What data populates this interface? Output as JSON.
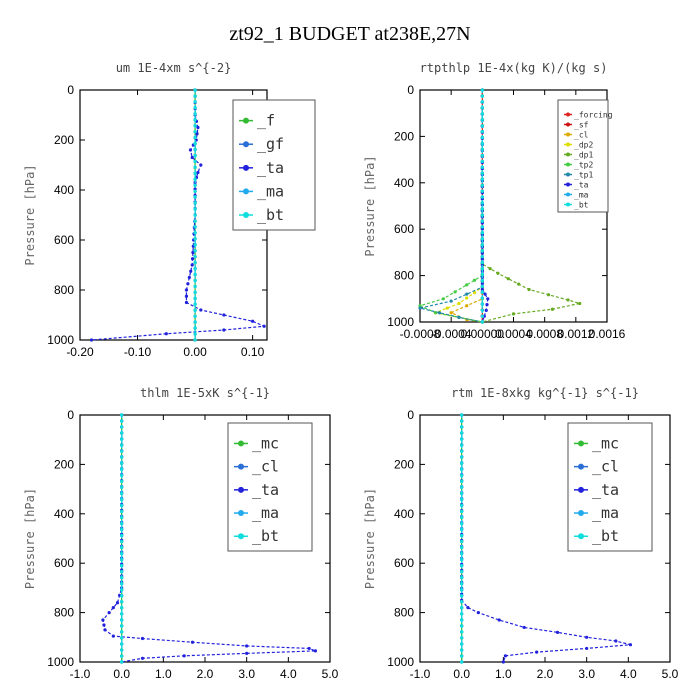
{
  "figure": {
    "title": "zt92_1  BUDGET at238E,27N"
  },
  "chart_data": [
    {
      "type": "line",
      "title": "um  1E-4xm s^{-2}",
      "xlabel": "",
      "ylabel": "Pressure [hPa]",
      "xlim": [
        -0.2,
        0.125
      ],
      "ylim": [
        1000,
        0
      ],
      "xticks": [
        -0.2,
        -0.1,
        0.0,
        0.1
      ],
      "xtick_labels": [
        "-0.20",
        "-0.10",
        "0.00",
        "0.10"
      ],
      "yticks": [
        0,
        200,
        400,
        600,
        800,
        1000
      ],
      "ytick_labels": [
        "0",
        "200",
        "400",
        "600",
        "800",
        "1000"
      ],
      "legend": "top-right",
      "series": [
        {
          "name": "_f",
          "color": "#33bb33",
          "points": [
            [
              0,
              0
            ],
            [
              0,
              1000
            ]
          ]
        },
        {
          "name": "_gf",
          "color": "#2a6fd6",
          "points": [
            [
              0,
              0
            ],
            [
              0,
              1000
            ]
          ]
        },
        {
          "name": "_ta",
          "color": "#2222dd",
          "points": [
            [
              0,
              0
            ],
            [
              0,
              100
            ],
            [
              0.005,
              150
            ],
            [
              0.002,
              200
            ],
            [
              -0.008,
              240
            ],
            [
              -0.005,
              270
            ],
            [
              0.01,
              300
            ],
            [
              0.005,
              330
            ],
            [
              0,
              370
            ],
            [
              0,
              500
            ],
            [
              -0.005,
              700
            ],
            [
              -0.01,
              750
            ],
            [
              -0.015,
              800
            ],
            [
              -0.015,
              850
            ],
            [
              0.01,
              880
            ],
            [
              0.05,
              900
            ],
            [
              0.1,
              925
            ],
            [
              0.12,
              945
            ],
            [
              0.05,
              960
            ],
            [
              -0.05,
              975
            ],
            [
              -0.18,
              1000
            ]
          ]
        },
        {
          "name": "_ma",
          "color": "#22aaee",
          "points": [
            [
              0,
              0
            ],
            [
              0,
              1000
            ]
          ]
        },
        {
          "name": "_bt",
          "color": "#11dddd",
          "points": [
            [
              0,
              0
            ],
            [
              0,
              1000
            ]
          ]
        }
      ]
    },
    {
      "type": "line",
      "title": "rtpthlp  1E-4x(kg K)/(kg s)",
      "xlabel": "",
      "ylabel": "Pressure [hPa]",
      "xlim": [
        -0.0008,
        0.0016
      ],
      "ylim": [
        1000,
        0
      ],
      "xticks": [
        -0.0008,
        -0.0004,
        0.0,
        0.0004,
        0.0008,
        0.0012,
        0.0016
      ],
      "xtick_labels": [
        "-0.0008",
        "-0.0004",
        "0.00000",
        "0.0004",
        "0.0008",
        "0.0012",
        "0.0016"
      ],
      "yticks": [
        0,
        200,
        400,
        600,
        800,
        1000
      ],
      "ytick_labels": [
        "0",
        "200",
        "400",
        "600",
        "800",
        "1000"
      ],
      "legend": "top-right",
      "series": [
        {
          "name": "_forcing",
          "color": "#dd2222",
          "points": [
            [
              0,
              0
            ],
            [
              0,
              1000
            ]
          ]
        },
        {
          "name": "_sf",
          "color": "#cc1111",
          "points": [
            [
              0,
              0
            ],
            [
              0,
              1000
            ]
          ]
        },
        {
          "name": "_cl",
          "color": "#ddaa00",
          "points": [
            [
              0,
              0
            ],
            [
              0,
              900
            ],
            [
              -0.0004,
              960
            ],
            [
              -0.0002,
              990
            ],
            [
              0,
              1000
            ]
          ]
        },
        {
          "name": "_dp2",
          "color": "#dddd00",
          "points": [
            [
              0,
              0
            ],
            [
              0,
              850
            ],
            [
              -0.0003,
              920
            ],
            [
              -0.0006,
              960
            ],
            [
              0,
              1000
            ]
          ]
        },
        {
          "name": "_dp1",
          "color": "#66aa22",
          "points": [
            [
              0,
              0
            ],
            [
              0,
              750
            ],
            [
              0.0002,
              790
            ],
            [
              0.0006,
              860
            ],
            [
              0.0011,
              905
            ],
            [
              0.00125,
              920
            ],
            [
              0.0009,
              945
            ],
            [
              0.0004,
              965
            ],
            [
              0,
              1000
            ]
          ]
        },
        {
          "name": "_tp2",
          "color": "#44cc44",
          "points": [
            [
              0,
              0
            ],
            [
              0,
              800
            ],
            [
              -0.0002,
              840
            ],
            [
              -0.0005,
              900
            ],
            [
              -0.0008,
              930
            ],
            [
              -0.0006,
              960
            ],
            [
              0,
              1000
            ]
          ]
        },
        {
          "name": "_tp1",
          "color": "#2288aa",
          "points": [
            [
              0,
              0
            ],
            [
              0,
              850
            ],
            [
              -0.0004,
              910
            ],
            [
              -0.0008,
              940
            ],
            [
              -0.0003,
              980
            ],
            [
              0,
              1000
            ]
          ]
        },
        {
          "name": "_ta",
          "color": "#2222dd",
          "points": [
            [
              0,
              0
            ],
            [
              0,
              860
            ],
            [
              7e-05,
              900
            ],
            [
              5e-05,
              950
            ],
            [
              0,
              1000
            ]
          ]
        },
        {
          "name": "_ma",
          "color": "#22aaee",
          "points": [
            [
              0,
              0
            ],
            [
              0,
              1000
            ]
          ]
        },
        {
          "name": "_bt",
          "color": "#11dddd",
          "points": [
            [
              0,
              0
            ],
            [
              0,
              1000
            ]
          ]
        }
      ]
    },
    {
      "type": "line",
      "title": "thlm  1E-5xK s^{-1}",
      "xlabel": "",
      "ylabel": "Pressure [hPa]",
      "xlim": [
        -1.0,
        5.0
      ],
      "ylim": [
        1000,
        0
      ],
      "xticks": [
        -1,
        0,
        1,
        2,
        3,
        4,
        5
      ],
      "xtick_labels": [
        "-1.0",
        "0.0",
        "1.0",
        "2.0",
        "3.0",
        "4.0",
        "5.0"
      ],
      "yticks": [
        0,
        200,
        400,
        600,
        800,
        1000
      ],
      "ytick_labels": [
        "0",
        "200",
        "400",
        "600",
        "800",
        "1000"
      ],
      "legend": "top-right",
      "series": [
        {
          "name": "_mc",
          "color": "#33bb33",
          "points": [
            [
              0,
              0
            ],
            [
              0,
              1000
            ]
          ]
        },
        {
          "name": "_cl",
          "color": "#2a6fd6",
          "points": [
            [
              0,
              0
            ],
            [
              0,
              1000
            ]
          ]
        },
        {
          "name": "_ta",
          "color": "#2222dd",
          "points": [
            [
              0,
              0
            ],
            [
              0,
              700
            ],
            [
              -0.1,
              760
            ],
            [
              -0.3,
              800
            ],
            [
              -0.45,
              830
            ],
            [
              -0.4,
              870
            ],
            [
              -0.2,
              895
            ],
            [
              0.5,
              905
            ],
            [
              1.7,
              920
            ],
            [
              3.0,
              935
            ],
            [
              4.5,
              945
            ],
            [
              4.65,
              955
            ],
            [
              3.0,
              965
            ],
            [
              1.5,
              975
            ],
            [
              0.5,
              985
            ],
            [
              0,
              1000
            ]
          ]
        },
        {
          "name": "_ma",
          "color": "#22aaee",
          "points": [
            [
              0,
              0
            ],
            [
              0,
              1000
            ]
          ]
        },
        {
          "name": "_bt",
          "color": "#11dddd",
          "points": [
            [
              0,
              0
            ],
            [
              0,
              1000
            ]
          ]
        }
      ]
    },
    {
      "type": "line",
      "title": "rtm  1E-8xkg kg^{-1} s^{-1}",
      "xlabel": "",
      "ylabel": "Pressure [hPa]",
      "xlim": [
        -1.0,
        5.0
      ],
      "ylim": [
        1000,
        0
      ],
      "xticks": [
        -1,
        0,
        1,
        2,
        3,
        4,
        5
      ],
      "xtick_labels": [
        "-1.0",
        "0.0",
        "1.0",
        "2.0",
        "3.0",
        "4.0",
        "5.0"
      ],
      "yticks": [
        0,
        200,
        400,
        600,
        800,
        1000
      ],
      "ytick_labels": [
        "0",
        "200",
        "400",
        "600",
        "800",
        "1000"
      ],
      "legend": "top-right",
      "series": [
        {
          "name": "_mc",
          "color": "#33bb33",
          "points": [
            [
              0,
              0
            ],
            [
              0,
              1000
            ]
          ]
        },
        {
          "name": "_cl",
          "color": "#2a6fd6",
          "points": [
            [
              0,
              0
            ],
            [
              0,
              1000
            ]
          ]
        },
        {
          "name": "_ta",
          "color": "#2222dd",
          "points": [
            [
              0,
              0
            ],
            [
              0,
              750
            ],
            [
              0.15,
              780
            ],
            [
              0.4,
              800
            ],
            [
              0.9,
              830
            ],
            [
              1.5,
              860
            ],
            [
              2.3,
              880
            ],
            [
              3.0,
              900
            ],
            [
              3.7,
              915
            ],
            [
              4.05,
              930
            ],
            [
              3.0,
              945
            ],
            [
              1.8,
              960
            ],
            [
              1.05,
              975
            ],
            [
              1.0,
              1000
            ]
          ]
        },
        {
          "name": "_ma",
          "color": "#22aaee",
          "points": [
            [
              0,
              0
            ],
            [
              0,
              1000
            ]
          ]
        },
        {
          "name": "_bt",
          "color": "#11dddd",
          "points": [
            [
              0,
              0
            ],
            [
              0,
              1000
            ]
          ]
        }
      ]
    }
  ]
}
